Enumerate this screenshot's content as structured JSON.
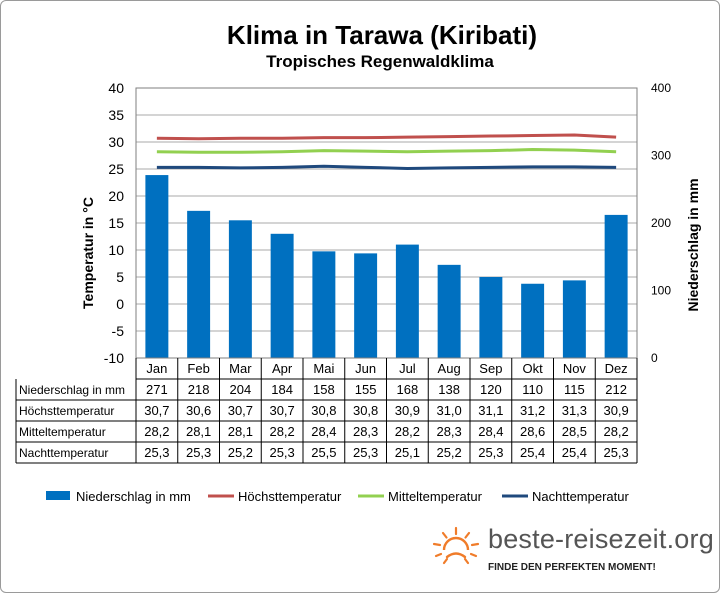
{
  "chart_data": {
    "type": "bar",
    "title": "Klima in Tarawa (Kiribati)",
    "subtitle": "Tropisches Regenwaldklima",
    "categories": [
      "Jan",
      "Feb",
      "Mar",
      "Apr",
      "Mai",
      "Jun",
      "Jul",
      "Aug",
      "Sep",
      "Okt",
      "Nov",
      "Dez"
    ],
    "ylabel_left": "Temperatur in °C",
    "ylabel_right": "Niederschlag in mm",
    "ylim_left": [
      -10,
      40
    ],
    "ylim_right": [
      0,
      400
    ],
    "yticks_left": [
      -10,
      -5,
      0,
      5,
      10,
      15,
      20,
      25,
      30,
      35,
      40
    ],
    "yticks_right": [
      0,
      100,
      200,
      300,
      400
    ],
    "grid": "horizontal",
    "legend_position": "bottom",
    "bar_series": {
      "name": "Niederschlag in mm",
      "axis": "right",
      "color": "#0070c0",
      "values": [
        271,
        218,
        204,
        184,
        158,
        155,
        168,
        138,
        120,
        110,
        115,
        212
      ]
    },
    "line_series": [
      {
        "name": "Höchsttemperatur",
        "color": "#c0504d",
        "values": [
          30.7,
          30.6,
          30.7,
          30.7,
          30.8,
          30.8,
          30.9,
          31.0,
          31.1,
          31.2,
          31.3,
          30.9
        ]
      },
      {
        "name": "Mitteltemperatur",
        "color": "#92d050",
        "values": [
          28.2,
          28.1,
          28.1,
          28.2,
          28.4,
          28.3,
          28.2,
          28.3,
          28.4,
          28.6,
          28.5,
          28.2
        ]
      },
      {
        "name": "Nachttemperatur",
        "color": "#1f497d",
        "values": [
          25.3,
          25.3,
          25.2,
          25.3,
          25.5,
          25.3,
          25.1,
          25.2,
          25.3,
          25.4,
          25.4,
          25.3
        ]
      }
    ],
    "table_rows": [
      {
        "label": "Niederschlag in mm",
        "values": [
          "271",
          "218",
          "204",
          "184",
          "158",
          "155",
          "168",
          "138",
          "120",
          "110",
          "115",
          "212"
        ]
      },
      {
        "label": "Höchsttemperatur",
        "values": [
          "30,7",
          "30,6",
          "30,7",
          "30,7",
          "30,8",
          "30,8",
          "30,9",
          "31,0",
          "31,1",
          "31,2",
          "31,3",
          "30,9"
        ]
      },
      {
        "label": "Mitteltemperatur",
        "values": [
          "28,2",
          "28,1",
          "28,1",
          "28,2",
          "28,4",
          "28,3",
          "28,2",
          "28,3",
          "28,4",
          "28,6",
          "28,5",
          "28,2"
        ]
      },
      {
        "label": "Nachttemperatur",
        "values": [
          "25,3",
          "25,3",
          "25,2",
          "25,3",
          "25,5",
          "25,3",
          "25,1",
          "25,2",
          "25,3",
          "25,4",
          "25,4",
          "25,3"
        ]
      }
    ]
  },
  "brand": {
    "name": "beste-reisezeit.org",
    "tagline": "FINDE DEN PERFEKTEN MOMENT!",
    "accent_color": "#f07c2a"
  }
}
